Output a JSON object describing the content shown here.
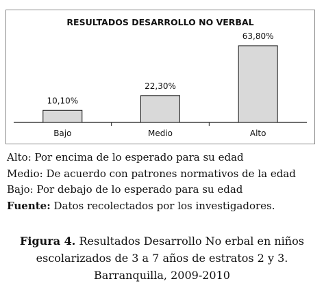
{
  "chart_data": {
    "type": "bar",
    "title": "RESULTADOS DESARROLLO NO VERBAL",
    "categories": [
      "Bajo",
      "Medio",
      "Alto"
    ],
    "values": [
      10.1,
      22.3,
      63.8
    ],
    "data_labels": [
      "10,10%",
      "22,30%",
      "63,80%"
    ],
    "ylim": [
      0,
      70
    ],
    "colors": {
      "bar": "#d9d9d9",
      "bar_stroke": "#1a1a1a",
      "frame": "#888888"
    },
    "grid": false,
    "legend": "none"
  },
  "notes": {
    "alto": "Alto: Por encima de lo esperado para su edad",
    "medio": "Medio: De acuerdo con patrones normativos de la edad",
    "bajo": "Bajo: Por debajo de lo esperado para su edad",
    "fuente_label": "Fuente:",
    "fuente_text": " Datos recolectados por los investigadores."
  },
  "caption": {
    "label": "Figura 4.",
    "text": " Resultados Desarrollo No erbal en niños escolarizados de 3 a 7 años de estratos 2 y 3. Barranquilla, 2009-2010"
  }
}
